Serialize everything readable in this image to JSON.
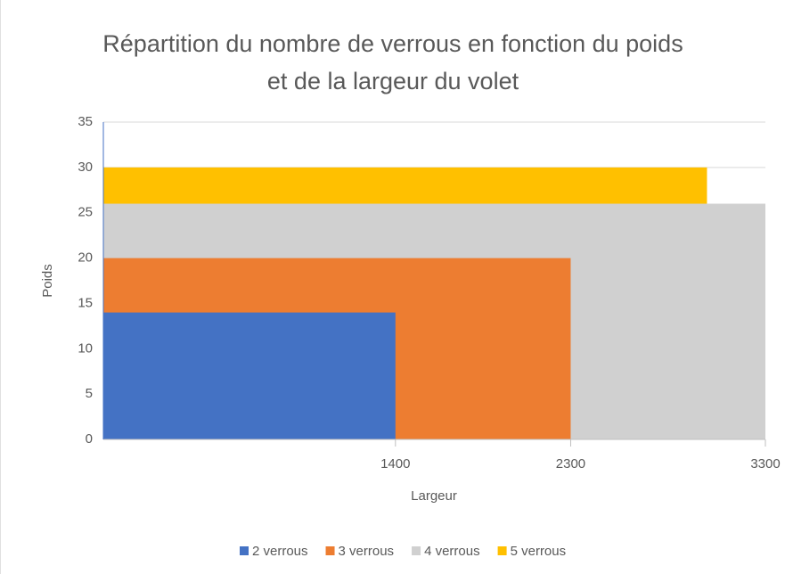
{
  "chart_data": {
    "type": "step-area",
    "title": "Répartition du nombre de verrous en fonction du poids et de la largeur du volet",
    "x_label": "Largeur",
    "y_label": "Poids",
    "series": [
      {
        "name": "2 verrous",
        "color": "#4472c4",
        "x": [
          1400
        ],
        "values": [
          14
        ]
      },
      {
        "name": "3 verrous",
        "color": "#ed7d31",
        "x": [
          2300
        ],
        "values": [
          20
        ]
      },
      {
        "name": "4 verrous",
        "color": "#d0d0d0",
        "x": [
          3300
        ],
        "values": [
          26
        ]
      },
      {
        "name": "5 verrous",
        "color": "#ffc000",
        "x": [
          3000
        ],
        "values": [
          30
        ]
      }
    ],
    "xlim": [
      -100,
      3300
    ],
    "xticks": [
      1400,
      2300,
      3300
    ],
    "ylim": [
      0,
      35
    ],
    "yticks": [
      0,
      5,
      10,
      15,
      20,
      25,
      30,
      35
    ],
    "grid": true,
    "legend": "bottom"
  }
}
